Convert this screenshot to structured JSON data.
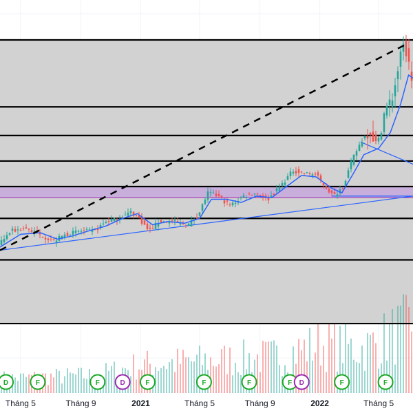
{
  "chart_data": {
    "type": "candlestick",
    "title": "",
    "xlabel": "",
    "ylabel": "",
    "x_range": [
      "2020-03-20",
      "2022-07-10"
    ],
    "y_range": [
      0,
      100
    ],
    "grid": true,
    "colors": {
      "plot_background": "#d2d2d2",
      "up": "#26a69a",
      "down": "#ef5350",
      "moving_average": "#2962ff",
      "trendline": "#2962ff",
      "zone": "#c5a8dd",
      "level": "#000000",
      "event_green": "#19a824",
      "event_purple": "#9c27b0"
    },
    "x_ticks": [
      {
        "date": "2020-05-01",
        "label": "Tháng 5",
        "year": false
      },
      {
        "date": "2020-09-01",
        "label": "Tháng 9",
        "year": false
      },
      {
        "date": "2021-01-01",
        "label": "2021",
        "year": true
      },
      {
        "date": "2021-05-01",
        "label": "Tháng 5",
        "year": false
      },
      {
        "date": "2021-09-01",
        "label": "Tháng 9",
        "year": false
      },
      {
        "date": "2022-01-01",
        "label": "2022",
        "year": true
      },
      {
        "date": "2022-05-01",
        "label": "Tháng 5",
        "year": false
      }
    ],
    "horizontal_levels": [
      100,
      79,
      70,
      62,
      54,
      44,
      31,
      11
    ],
    "zone": {
      "from": 50.5,
      "to": 54
    },
    "dashed_line": {
      "from": {
        "date": "2020-03-20",
        "value": 34
      },
      "to": {
        "date": "2022-07-01",
        "value": 99
      }
    },
    "trendlines": [
      {
        "from": {
          "date": "2020-03-20",
          "value": 34
        },
        "to": {
          "date": "2022-07-10",
          "value": 51
        }
      },
      {
        "from": {
          "date": "2022-03-25",
          "value": 68
        },
        "to": {
          "date": "2022-07-10",
          "value": 61
        }
      },
      {
        "from": {
          "date": "2022-01-25",
          "value": 51
        },
        "to": {
          "date": "2022-07-10",
          "value": 51
        }
      }
    ],
    "price_series": [
      {
        "date": "2020-03-20",
        "value": 36
      },
      {
        "date": "2020-04-15",
        "value": 40
      },
      {
        "date": "2020-05-15",
        "value": 41
      },
      {
        "date": "2020-06-10",
        "value": 39
      },
      {
        "date": "2020-07-10",
        "value": 37
      },
      {
        "date": "2020-08-05",
        "value": 39
      },
      {
        "date": "2020-09-01",
        "value": 40
      },
      {
        "date": "2020-10-01",
        "value": 40
      },
      {
        "date": "2020-10-25",
        "value": 43
      },
      {
        "date": "2020-11-20",
        "value": 44
      },
      {
        "date": "2020-12-15",
        "value": 46
      },
      {
        "date": "2021-01-01",
        "value": 44
      },
      {
        "date": "2021-01-20",
        "value": 40
      },
      {
        "date": "2021-02-10",
        "value": 43
      },
      {
        "date": "2021-03-10",
        "value": 43
      },
      {
        "date": "2021-04-10",
        "value": 42
      },
      {
        "date": "2021-05-01",
        "value": 45
      },
      {
        "date": "2021-05-20",
        "value": 52
      },
      {
        "date": "2021-06-10",
        "value": 51
      },
      {
        "date": "2021-07-05",
        "value": 48
      },
      {
        "date": "2021-08-01",
        "value": 51
      },
      {
        "date": "2021-08-25",
        "value": 52
      },
      {
        "date": "2021-09-20",
        "value": 50
      },
      {
        "date": "2021-10-15",
        "value": 54
      },
      {
        "date": "2021-11-10",
        "value": 59
      },
      {
        "date": "2021-12-05",
        "value": 58
      },
      {
        "date": "2021-12-25",
        "value": 58
      },
      {
        "date": "2022-01-15",
        "value": 54
      },
      {
        "date": "2022-02-01",
        "value": 51
      },
      {
        "date": "2022-02-20",
        "value": 54
      },
      {
        "date": "2022-03-10",
        "value": 62
      },
      {
        "date": "2022-03-25",
        "value": 67
      },
      {
        "date": "2022-04-15",
        "value": 72
      },
      {
        "date": "2022-05-01",
        "value": 67
      },
      {
        "date": "2022-05-15",
        "value": 77
      },
      {
        "date": "2022-06-01",
        "value": 82
      },
      {
        "date": "2022-06-15",
        "value": 93
      },
      {
        "date": "2022-06-25",
        "value": 99
      },
      {
        "date": "2022-07-10",
        "value": 88
      }
    ],
    "moving_average": [
      {
        "date": "2020-03-20",
        "value": 35
      },
      {
        "date": "2020-05-01",
        "value": 39
      },
      {
        "date": "2020-06-10",
        "value": 39.5
      },
      {
        "date": "2020-07-15",
        "value": 37.5
      },
      {
        "date": "2020-08-15",
        "value": 38.5
      },
      {
        "date": "2020-09-15",
        "value": 40
      },
      {
        "date": "2020-10-20",
        "value": 41.5
      },
      {
        "date": "2020-11-25",
        "value": 44
      },
      {
        "date": "2020-12-25",
        "value": 45.5
      },
      {
        "date": "2021-01-25",
        "value": 42
      },
      {
        "date": "2021-02-25",
        "value": 43
      },
      {
        "date": "2021-04-01",
        "value": 42.5
      },
      {
        "date": "2021-05-01",
        "value": 44
      },
      {
        "date": "2021-05-25",
        "value": 50
      },
      {
        "date": "2021-06-25",
        "value": 50
      },
      {
        "date": "2021-07-25",
        "value": 49
      },
      {
        "date": "2021-08-25",
        "value": 51
      },
      {
        "date": "2021-09-25",
        "value": 50.5
      },
      {
        "date": "2021-10-25",
        "value": 54
      },
      {
        "date": "2021-11-25",
        "value": 57.5
      },
      {
        "date": "2021-12-25",
        "value": 57
      },
      {
        "date": "2022-01-25",
        "value": 53.5
      },
      {
        "date": "2022-02-15",
        "value": 52
      },
      {
        "date": "2022-03-10",
        "value": 58
      },
      {
        "date": "2022-04-01",
        "value": 64
      },
      {
        "date": "2022-05-01",
        "value": 66
      },
      {
        "date": "2022-05-25",
        "value": 71
      },
      {
        "date": "2022-06-15",
        "value": 80
      },
      {
        "date": "2022-07-01",
        "value": 89
      },
      {
        "date": "2022-07-10",
        "value": 88
      }
    ],
    "volume_scale": [
      0,
      100
    ],
    "volume_profile": [
      {
        "date": "2020-03-20",
        "value": 18
      },
      {
        "date": "2020-10-01",
        "value": 22
      },
      {
        "date": "2021-01-01",
        "value": 35
      },
      {
        "date": "2021-05-15",
        "value": 40
      },
      {
        "date": "2021-10-01",
        "value": 45
      },
      {
        "date": "2022-01-01",
        "value": 60
      },
      {
        "date": "2022-04-01",
        "value": 55
      },
      {
        "date": "2022-07-10",
        "value": 85
      }
    ],
    "events": [
      {
        "date": "2020-04-01",
        "label": "D",
        "kind": "green"
      },
      {
        "date": "2020-06-05",
        "label": "F",
        "kind": "green"
      },
      {
        "date": "2020-10-05",
        "label": "F",
        "kind": "green"
      },
      {
        "date": "2020-11-25",
        "label": "D",
        "kind": "purple"
      },
      {
        "date": "2021-01-15",
        "label": "F",
        "kind": "green"
      },
      {
        "date": "2021-05-10",
        "label": "F",
        "kind": "green"
      },
      {
        "date": "2021-08-10",
        "label": "F",
        "kind": "green"
      },
      {
        "date": "2021-11-01",
        "label": "F",
        "kind": "green"
      },
      {
        "date": "2021-11-25",
        "label": "D",
        "kind": "purple"
      },
      {
        "date": "2022-02-15",
        "label": "F",
        "kind": "green"
      },
      {
        "date": "2022-05-15",
        "label": "F",
        "kind": "green"
      }
    ]
  }
}
